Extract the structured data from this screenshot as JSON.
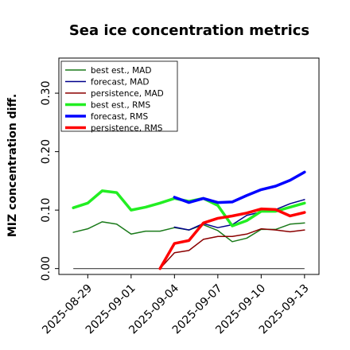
{
  "chart_data": {
    "type": "line",
    "title": "Sea ice concentration metrics",
    "xlabel": "",
    "ylabel": "MIZ concentration diff.",
    "ylim": [
      -0.01,
      0.36
    ],
    "yticks": [
      "0.00",
      "0.10",
      "0.20",
      "0.30"
    ],
    "ytick_values": [
      0.0,
      0.1,
      0.2,
      0.3
    ],
    "xlim": [
      "2025-08-27",
      "2025-09-14"
    ],
    "xticks": [
      {
        "date": "2025-08-29",
        "label": "2025-08-29",
        "color": "#000000"
      },
      {
        "date": "2025-09-01",
        "label": "2025-09-01",
        "color": "#000000"
      },
      {
        "date": "2025-09-04",
        "label": "2025-09-04",
        "color": "#228b22"
      },
      {
        "date": "2025-09-07",
        "label": "2025-09-07",
        "color": "#000000"
      },
      {
        "date": "2025-09-10",
        "label": "2025-09-10",
        "color": "#000000"
      },
      {
        "date": "2025-09-13",
        "label": "2025-09-13",
        "color": "#000000"
      }
    ],
    "grid": false,
    "legend_position": "top-left",
    "reference_line": {
      "y": 0.0,
      "color": "#555555"
    },
    "series": [
      {
        "name": "best est., MAD",
        "color": "#1a7a1a",
        "width": 1.5,
        "x": [
          "2025-08-28",
          "2025-08-29",
          "2025-08-30",
          "2025-08-31",
          "2025-09-01",
          "2025-09-02",
          "2025-09-03",
          "2025-09-04",
          "2025-09-05",
          "2025-09-06",
          "2025-09-07",
          "2025-09-08",
          "2025-09-09",
          "2025-09-10",
          "2025-09-11",
          "2025-09-12",
          "2025-09-13"
        ],
        "values": [
          0.062,
          0.068,
          0.08,
          0.076,
          0.059,
          0.064,
          0.064,
          0.07,
          0.066,
          0.075,
          0.065,
          0.046,
          0.052,
          0.067,
          0.067,
          0.076,
          0.078
        ]
      },
      {
        "name": "forecast, MAD",
        "color": "#00008b",
        "width": 1.5,
        "x": [
          "2025-09-04",
          "2025-09-05",
          "2025-09-06",
          "2025-09-07",
          "2025-09-08",
          "2025-09-09",
          "2025-09-10",
          "2025-09-11",
          "2025-09-12",
          "2025-09-13"
        ],
        "values": [
          0.071,
          0.066,
          0.077,
          0.07,
          0.075,
          0.091,
          0.097,
          0.101,
          0.111,
          0.118
        ]
      },
      {
        "name": "persistence, MAD",
        "color": "#8b0000",
        "width": 1.5,
        "x": [
          "2025-09-03",
          "2025-09-04",
          "2025-09-05",
          "2025-09-06",
          "2025-09-07",
          "2025-09-08",
          "2025-09-09",
          "2025-09-10",
          "2025-09-11",
          "2025-09-12",
          "2025-09-13"
        ],
        "values": [
          0.0,
          0.027,
          0.031,
          0.05,
          0.055,
          0.055,
          0.059,
          0.068,
          0.066,
          0.063,
          0.066
        ]
      },
      {
        "name": "best est., RMS",
        "color": "#22ee22",
        "width": 3.5,
        "x": [
          "2025-08-28",
          "2025-08-29",
          "2025-08-30",
          "2025-08-31",
          "2025-09-01",
          "2025-09-02",
          "2025-09-03",
          "2025-09-04",
          "2025-09-05",
          "2025-09-06",
          "2025-09-07",
          "2025-09-08",
          "2025-09-09",
          "2025-09-10",
          "2025-09-11",
          "2025-09-12",
          "2025-09-13"
        ],
        "values": [
          0.104,
          0.112,
          0.133,
          0.13,
          0.1,
          0.105,
          0.112,
          0.12,
          0.115,
          0.12,
          0.108,
          0.073,
          0.082,
          0.098,
          0.098,
          0.105,
          0.112
        ]
      },
      {
        "name": "forecast, RMS",
        "color": "#0000ff",
        "width": 3.5,
        "x": [
          "2025-09-04",
          "2025-09-05",
          "2025-09-06",
          "2025-09-07",
          "2025-09-08",
          "2025-09-09",
          "2025-09-10",
          "2025-09-11",
          "2025-09-12",
          "2025-09-13"
        ],
        "values": [
          0.122,
          0.113,
          0.12,
          0.113,
          0.114,
          0.125,
          0.135,
          0.141,
          0.151,
          0.165
        ]
      },
      {
        "name": "persistence, RMS",
        "color": "#ff0000",
        "width": 3.5,
        "x": [
          "2025-09-03",
          "2025-09-04",
          "2025-09-05",
          "2025-09-06",
          "2025-09-07",
          "2025-09-08",
          "2025-09-09",
          "2025-09-10",
          "2025-09-11",
          "2025-09-12",
          "2025-09-13"
        ],
        "values": [
          0.0,
          0.043,
          0.048,
          0.078,
          0.086,
          0.09,
          0.095,
          0.102,
          0.101,
          0.09,
          0.096
        ]
      }
    ]
  }
}
